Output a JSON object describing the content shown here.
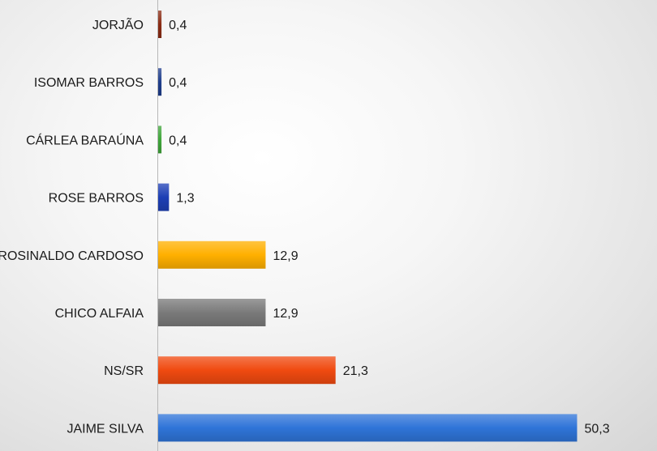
{
  "chart_data": {
    "type": "bar",
    "orientation": "horizontal",
    "categories": [
      "JORJÃO",
      "ISOMAR BARROS",
      "CÁRLEA BARAÚNA",
      "ROSE BARROS",
      "ROSINALDO CARDOSO",
      "CHICO ALFAIA",
      "NS/SR",
      "JAIME SILVA"
    ],
    "values": [
      0.4,
      0.4,
      0.4,
      1.3,
      12.9,
      12.9,
      21.3,
      50.3
    ],
    "value_labels": [
      "0,4",
      "0,4",
      "0,4",
      "1,3",
      "12,9",
      "12,9",
      "21,3",
      "50,3"
    ],
    "colors": [
      "#8b2c14",
      "#1f3e8c",
      "#3fa63a",
      "#1d3fb5",
      "#ffb000",
      "#7a7a7a",
      "#f04a10",
      "#2f74d8"
    ],
    "xlim": [
      0,
      56
    ],
    "grid": false,
    "legend": "none",
    "title": "",
    "xlabel": "",
    "ylabel": ""
  }
}
